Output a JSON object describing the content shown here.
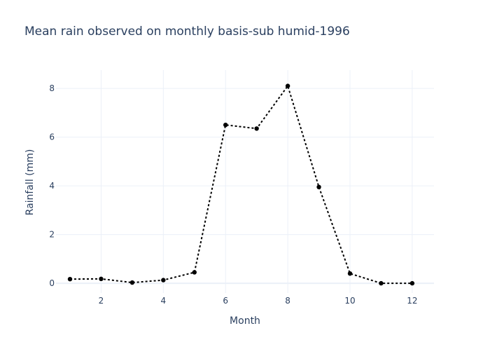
{
  "chart_data": {
    "type": "line",
    "title": "Mean rain observed on monthly basis-sub humid-1996",
    "xlabel": "Month",
    "ylabel": "Rainfall (mm)",
    "xlim": [
      0.55,
      12.7
    ],
    "ylim": [
      -0.4,
      8.75
    ],
    "xticks": [
      2,
      4,
      6,
      8,
      10,
      12
    ],
    "yticks": [
      0,
      2,
      4,
      6,
      8
    ],
    "grid": true,
    "line_style": "dotted",
    "marker": "circle",
    "colors": {
      "series": "#000000",
      "grid": "#ebf0f8",
      "text": "#2a3f5f"
    },
    "x": [
      1,
      2,
      3,
      4,
      5,
      6,
      7,
      8,
      9,
      10,
      11,
      12
    ],
    "values": [
      0.17,
      0.18,
      0.03,
      0.13,
      0.45,
      6.5,
      6.35,
      8.1,
      3.95,
      0.4,
      0.0,
      0.0
    ]
  }
}
